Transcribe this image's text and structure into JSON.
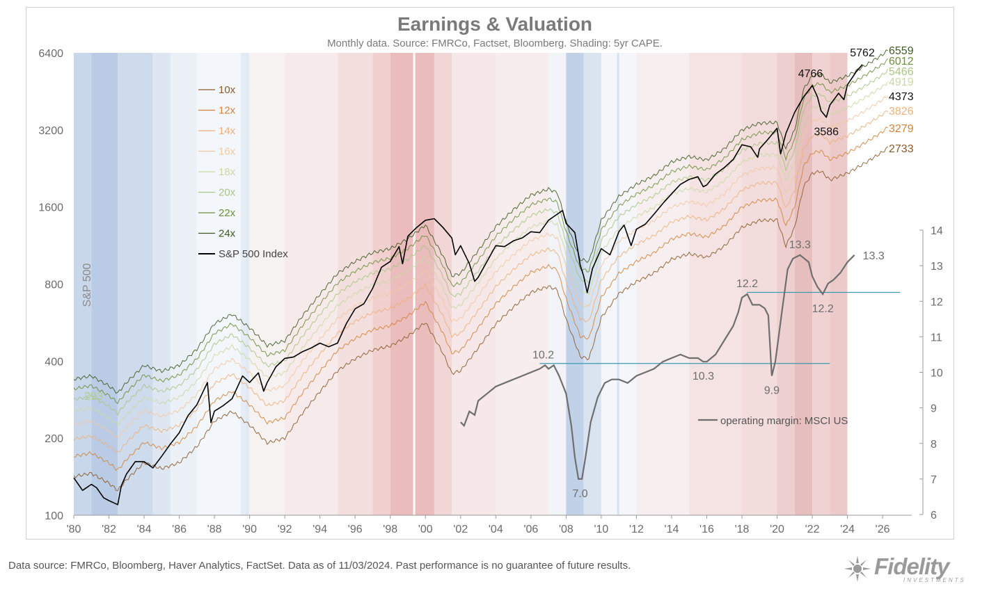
{
  "chart_data": {
    "type": "line",
    "title": "Earnings & Valuation",
    "subtitle": "Monthly data.  Source: FMRCo, Factset, Bloomberg.  Shading:  5yr CAPE.",
    "x_range": [
      1980,
      2027.5
    ],
    "x_tick_labels": [
      "'80",
      "'82",
      "'84",
      "'86",
      "'88",
      "'90",
      "'92",
      "'94",
      "'96",
      "'98",
      "'00",
      "'02",
      "'04",
      "'06",
      "'08",
      "'10",
      "'12",
      "'14",
      "'16",
      "'18",
      "'20",
      "'22",
      "'24",
      "'26"
    ],
    "y_left": {
      "label": "S&P 500",
      "scale": "log2",
      "range": [
        100,
        6400
      ],
      "ticks": [
        100,
        200,
        400,
        800,
        1600,
        3200,
        6400
      ]
    },
    "y_right": {
      "label": "",
      "scale": "linear",
      "range": [
        6,
        14
      ],
      "ticks": [
        6,
        7,
        8,
        9,
        10,
        11,
        12,
        13,
        14
      ]
    },
    "sp500": {
      "name": "S&P 500 Index",
      "color": "#000000",
      "points": [
        [
          1980.0,
          140
        ],
        [
          1980.5,
          125
        ],
        [
          1981.0,
          132
        ],
        [
          1981.3,
          128
        ],
        [
          1981.7,
          117
        ],
        [
          1982.0,
          114
        ],
        [
          1982.5,
          110
        ],
        [
          1982.7,
          130
        ],
        [
          1983.0,
          145
        ],
        [
          1983.5,
          162
        ],
        [
          1984.0,
          162
        ],
        [
          1984.5,
          153
        ],
        [
          1985.0,
          170
        ],
        [
          1985.5,
          190
        ],
        [
          1986.0,
          210
        ],
        [
          1986.5,
          245
        ],
        [
          1987.0,
          270
        ],
        [
          1987.6,
          330
        ],
        [
          1987.8,
          230
        ],
        [
          1988.0,
          255
        ],
        [
          1988.5,
          268
        ],
        [
          1989.0,
          285
        ],
        [
          1989.6,
          350
        ],
        [
          1990.0,
          330
        ],
        [
          1990.5,
          360
        ],
        [
          1990.8,
          305
        ],
        [
          1991.0,
          330
        ],
        [
          1991.5,
          380
        ],
        [
          1992.0,
          410
        ],
        [
          1992.5,
          415
        ],
        [
          1993.0,
          435
        ],
        [
          1993.5,
          450
        ],
        [
          1994.0,
          470
        ],
        [
          1994.5,
          455
        ],
        [
          1995.0,
          470
        ],
        [
          1995.5,
          560
        ],
        [
          1996.0,
          640
        ],
        [
          1996.5,
          670
        ],
        [
          1997.0,
          770
        ],
        [
          1997.5,
          930
        ],
        [
          1998.0,
          980
        ],
        [
          1998.5,
          1120
        ],
        [
          1998.7,
          960
        ],
        [
          1999.0,
          1230
        ],
        [
          1999.5,
          1330
        ],
        [
          2000.0,
          1420
        ],
        [
          2000.5,
          1440
        ],
        [
          2001.0,
          1330
        ],
        [
          2001.5,
          1210
        ],
        [
          2001.7,
          1040
        ],
        [
          2002.0,
          1130
        ],
        [
          2002.5,
          960
        ],
        [
          2002.8,
          820
        ],
        [
          2003.0,
          850
        ],
        [
          2003.5,
          980
        ],
        [
          2004.0,
          1130
        ],
        [
          2004.5,
          1120
        ],
        [
          2005.0,
          1180
        ],
        [
          2005.5,
          1210
        ],
        [
          2006.0,
          1280
        ],
        [
          2006.5,
          1270
        ],
        [
          2007.0,
          1420
        ],
        [
          2007.5,
          1500
        ],
        [
          2007.8,
          1550
        ],
        [
          2008.0,
          1380
        ],
        [
          2008.5,
          1270
        ],
        [
          2008.8,
          950
        ],
        [
          2009.0,
          860
        ],
        [
          2009.2,
          740
        ],
        [
          2009.5,
          920
        ],
        [
          2010.0,
          1100
        ],
        [
          2010.5,
          1040
        ],
        [
          2011.0,
          1280
        ],
        [
          2011.3,
          1360
        ],
        [
          2011.7,
          1130
        ],
        [
          2012.0,
          1310
        ],
        [
          2012.5,
          1370
        ],
        [
          2013.0,
          1500
        ],
        [
          2013.5,
          1650
        ],
        [
          2014.0,
          1800
        ],
        [
          2014.5,
          1960
        ],
        [
          2015.0,
          2050
        ],
        [
          2015.5,
          2100
        ],
        [
          2015.8,
          1920
        ],
        [
          2016.0,
          1950
        ],
        [
          2016.5,
          2150
        ],
        [
          2017.0,
          2280
        ],
        [
          2017.5,
          2450
        ],
        [
          2018.0,
          2800
        ],
        [
          2018.5,
          2750
        ],
        [
          2018.9,
          2500
        ],
        [
          2019.0,
          2700
        ],
        [
          2019.5,
          2950
        ],
        [
          2020.0,
          3250
        ],
        [
          2020.2,
          2580
        ],
        [
          2020.5,
          3100
        ],
        [
          2021.0,
          3750
        ],
        [
          2021.5,
          4300
        ],
        [
          2022.0,
          4766
        ],
        [
          2022.3,
          4300
        ],
        [
          2022.5,
          3800
        ],
        [
          2022.8,
          3586
        ],
        [
          2023.0,
          4000
        ],
        [
          2023.5,
          4450
        ],
        [
          2023.8,
          4200
        ],
        [
          2024.0,
          4800
        ],
        [
          2024.5,
          5400
        ],
        [
          2024.85,
          5762
        ]
      ]
    },
    "pe_bands": [
      {
        "name": "10x",
        "color": "#8a5a2a",
        "end_label": "2733"
      },
      {
        "name": "12x",
        "color": "#d2833a",
        "end_label": "3279"
      },
      {
        "name": "14x",
        "color": "#edb07a",
        "end_label": "3826"
      },
      {
        "name": "16x",
        "color": "#f1c8a2",
        "end_label": ""
      },
      {
        "name": "18x",
        "color": "#c9d9a4",
        "end_label": "4919"
      },
      {
        "name": "20x",
        "color": "#a9c585",
        "end_label": "5466"
      },
      {
        "name": "22x",
        "color": "#6c8f3a",
        "end_label": "6012"
      },
      {
        "name": "24x",
        "color": "#3e5a22",
        "end_label": "6559"
      }
    ],
    "eps_24x_points": [
      [
        1980,
        340
      ],
      [
        1981,
        350
      ],
      [
        1982,
        320
      ],
      [
        1982.5,
        300
      ],
      [
        1983,
        330
      ],
      [
        1984,
        385
      ],
      [
        1985,
        365
      ],
      [
        1986,
        385
      ],
      [
        1987,
        445
      ],
      [
        1988,
        560
      ],
      [
        1989,
        610
      ],
      [
        1990,
        540
      ],
      [
        1991,
        460
      ],
      [
        1992,
        480
      ],
      [
        1993,
        600
      ],
      [
        1994,
        730
      ],
      [
        1995,
        880
      ],
      [
        1996,
        980
      ],
      [
        1997,
        1060
      ],
      [
        1998,
        1100
      ],
      [
        1999,
        1200
      ],
      [
        2000,
        1360
      ],
      [
        2001,
        1030
      ],
      [
        2001.5,
        860
      ],
      [
        2002,
        880
      ],
      [
        2003,
        1080
      ],
      [
        2004,
        1340
      ],
      [
        2005,
        1560
      ],
      [
        2006,
        1780
      ],
      [
        2007,
        1880
      ],
      [
        2007.5,
        1820
      ],
      [
        2008,
        1400
      ],
      [
        2008.8,
        1000
      ],
      [
        2009.3,
        980
      ],
      [
        2010,
        1420
      ],
      [
        2011,
        1760
      ],
      [
        2012,
        1960
      ],
      [
        2013,
        2120
      ],
      [
        2014,
        2400
      ],
      [
        2015,
        2520
      ],
      [
        2016,
        2440
      ],
      [
        2017,
        2700
      ],
      [
        2018,
        3200
      ],
      [
        2019,
        3400
      ],
      [
        2020,
        3420
      ],
      [
        2020.5,
        2700
      ],
      [
        2021,
        3200
      ],
      [
        2021.5,
        4600
      ],
      [
        2022,
        5200
      ],
      [
        2022.5,
        5300
      ],
      [
        2023,
        4900
      ],
      [
        2024,
        5200
      ],
      [
        2025,
        5700
      ],
      [
        2026,
        6300
      ],
      [
        2026.3,
        6559
      ]
    ],
    "band_extra_bump_2023_label": "4373",
    "operating_margin": {
      "name": "operating margin: MSCI US",
      "color": "#6e6e6e",
      "points": [
        [
          2002.0,
          8.6
        ],
        [
          2002.2,
          8.5
        ],
        [
          2002.5,
          8.9
        ],
        [
          2002.8,
          8.8
        ],
        [
          2003.0,
          9.2
        ],
        [
          2003.5,
          9.4
        ],
        [
          2004.0,
          9.6
        ],
        [
          2004.5,
          9.7
        ],
        [
          2005.0,
          9.8
        ],
        [
          2005.5,
          9.9
        ],
        [
          2006.0,
          10.0
        ],
        [
          2006.5,
          10.1
        ],
        [
          2006.8,
          10.2
        ],
        [
          2007.0,
          10.1
        ],
        [
          2007.3,
          10.2
        ],
        [
          2007.6,
          9.9
        ],
        [
          2008.0,
          9.4
        ],
        [
          2008.3,
          8.5
        ],
        [
          2008.5,
          7.6
        ],
        [
          2008.7,
          7.0
        ],
        [
          2008.9,
          7.0
        ],
        [
          2009.1,
          7.6
        ],
        [
          2009.4,
          8.6
        ],
        [
          2009.8,
          9.3
        ],
        [
          2010.2,
          9.7
        ],
        [
          2010.6,
          9.8
        ],
        [
          2011.0,
          9.8
        ],
        [
          2011.5,
          9.7
        ],
        [
          2012.0,
          9.9
        ],
        [
          2012.5,
          10.0
        ],
        [
          2013.0,
          10.1
        ],
        [
          2013.5,
          10.3
        ],
        [
          2014.0,
          10.4
        ],
        [
          2014.5,
          10.5
        ],
        [
          2015.0,
          10.4
        ],
        [
          2015.5,
          10.4
        ],
        [
          2015.8,
          10.3
        ],
        [
          2016.0,
          10.3
        ],
        [
          2016.5,
          10.5
        ],
        [
          2017.0,
          10.9
        ],
        [
          2017.5,
          11.3
        ],
        [
          2017.8,
          11.7
        ],
        [
          2018.0,
          12.1
        ],
        [
          2018.3,
          12.2
        ],
        [
          2018.6,
          11.9
        ],
        [
          2019.0,
          11.9
        ],
        [
          2019.3,
          11.8
        ],
        [
          2019.5,
          11.6
        ],
        [
          2019.7,
          9.9
        ],
        [
          2019.9,
          10.3
        ],
        [
          2020.3,
          11.8
        ],
        [
          2020.6,
          12.9
        ],
        [
          2020.9,
          13.2
        ],
        [
          2021.3,
          13.3
        ],
        [
          2021.8,
          13.1
        ],
        [
          2022.0,
          12.7
        ],
        [
          2022.3,
          12.4
        ],
        [
          2022.6,
          12.2
        ],
        [
          2022.9,
          12.5
        ],
        [
          2023.2,
          12.6
        ],
        [
          2023.6,
          12.8
        ],
        [
          2024.0,
          13.1
        ],
        [
          2024.4,
          13.3
        ]
      ]
    },
    "reference_lines": [
      {
        "y": 10.25,
        "x_from": 2006.5,
        "x_to": 2023.0
      },
      {
        "y": 12.25,
        "x_from": 2018.3,
        "x_to": 2027.0
      }
    ],
    "annotations": {
      "sp500": [
        {
          "x": 2021.9,
          "y": 4766,
          "text": "4766"
        },
        {
          "x": 2022.8,
          "y": 3586,
          "text": "3586"
        },
        {
          "x": 2024.85,
          "y": 5762,
          "text": "5762"
        }
      ],
      "margin": [
        {
          "x": 2006.7,
          "y": 10.2,
          "text": "10.2"
        },
        {
          "x": 2008.8,
          "y": 7.0,
          "text": "7.0"
        },
        {
          "x": 2015.8,
          "y": 10.3,
          "text": "10.3"
        },
        {
          "x": 2019.7,
          "y": 9.9,
          "text": "9.9"
        },
        {
          "x": 2018.3,
          "y": 12.2,
          "text": "12.2"
        },
        {
          "x": 2022.6,
          "y": 12.2,
          "text": "12.2"
        },
        {
          "x": 2021.3,
          "y": 13.3,
          "text": "13.3"
        },
        {
          "x": 2024.4,
          "y": 13.3,
          "text": "13.3"
        }
      ],
      "start_293": "293"
    },
    "shading": {
      "legend": "5yr CAPE",
      "segments": [
        {
          "from": 1980.0,
          "to": 1981.0,
          "color": "#bfd0e8"
        },
        {
          "from": 1981.0,
          "to": 1982.5,
          "color": "#aec3e0"
        },
        {
          "from": 1982.5,
          "to": 1984.5,
          "color": "#c5d5ea"
        },
        {
          "from": 1984.5,
          "to": 1985.5,
          "color": "#d8e2f0"
        },
        {
          "from": 1985.5,
          "to": 1987.0,
          "color": "#e8eef6"
        },
        {
          "from": 1987.0,
          "to": 1989.5,
          "color": "#f1f4f9"
        },
        {
          "from": 1989.5,
          "to": 1990.0,
          "color": "#e2e9f3"
        },
        {
          "from": 1990.0,
          "to": 1992.0,
          "color": "#f4f0f0"
        },
        {
          "from": 1992.0,
          "to": 1995.0,
          "color": "#f6e6e6"
        },
        {
          "from": 1995.0,
          "to": 1997.0,
          "color": "#f2d9d9"
        },
        {
          "from": 1997.0,
          "to": 1998.0,
          "color": "#eec8c8"
        },
        {
          "from": 1998.0,
          "to": 2000.5,
          "color": "#e6b0b0"
        },
        {
          "from": 2000.5,
          "to": 2001.5,
          "color": "#f0cfcf"
        },
        {
          "from": 2001.5,
          "to": 2004.0,
          "color": "#f4e4e4"
        },
        {
          "from": 2004.0,
          "to": 2007.0,
          "color": "#f6eaea"
        },
        {
          "from": 2007.0,
          "to": 2008.0,
          "color": "#eef1f6"
        },
        {
          "from": 2008.0,
          "to": 2009.0,
          "color": "#b6c9e4"
        },
        {
          "from": 2009.0,
          "to": 2010.0,
          "color": "#d3dfee"
        },
        {
          "from": 2010.0,
          "to": 2012.0,
          "color": "#f2f4f8"
        },
        {
          "from": 2012.0,
          "to": 2015.0,
          "color": "#f6ecec"
        },
        {
          "from": 2015.0,
          "to": 2018.0,
          "color": "#f3dede"
        },
        {
          "from": 2018.0,
          "to": 2020.0,
          "color": "#f0d6d6"
        },
        {
          "from": 2020.0,
          "to": 2021.0,
          "color": "#ebc7c7"
        },
        {
          "from": 2021.0,
          "to": 2022.0,
          "color": "#e3b3b3"
        },
        {
          "from": 2022.0,
          "to": 2023.0,
          "color": "#edcaca"
        },
        {
          "from": 2023.0,
          "to": 2024.0,
          "color": "#e9c1c1"
        }
      ]
    }
  },
  "footer": "Data source: FMRCo, Bloomberg, Haver Analytics, FactSet. Data as of 11/03/2024. Past performance is no guarantee of future results.",
  "logo": {
    "word": "Fidelity",
    "sub": "INVESTMENTS"
  }
}
